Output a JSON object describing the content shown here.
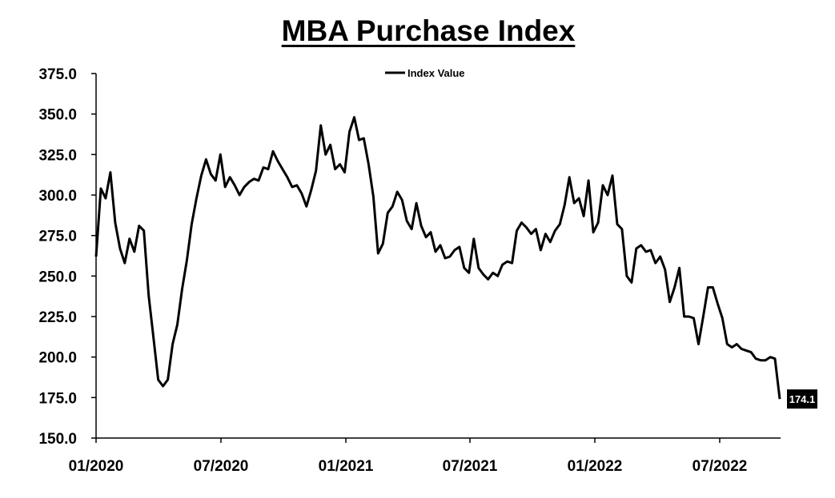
{
  "chart_data": {
    "type": "line",
    "title": "MBA Purchase Index",
    "xlabel": "",
    "ylabel": "",
    "ylim": [
      150,
      375
    ],
    "yticks": [
      "150.0",
      "175.0",
      "200.0",
      "225.0",
      "250.0",
      "275.0",
      "300.0",
      "325.0",
      "350.0",
      "375.0"
    ],
    "xticks": [
      "01/2020",
      "07/2020",
      "01/2021",
      "07/2021",
      "01/2022",
      "07/2022"
    ],
    "x_start": "01/2020",
    "x_end": "11/2022",
    "grid": false,
    "legend": "top-center",
    "series": [
      {
        "name": "Index Value",
        "color": "#000000",
        "values": [
          262.0,
          304.0,
          298.0,
          314.0,
          283.0,
          267.0,
          258.0,
          273.0,
          265.0,
          281.0,
          278.0,
          238.0,
          212.0,
          186.0,
          182.0,
          186.0,
          208.0,
          220.0,
          242.0,
          260.0,
          282.0,
          298.0,
          312.0,
          322.0,
          313.0,
          309.0,
          325.0,
          305.0,
          311.0,
          306.0,
          300.0,
          305.0,
          308.0,
          310.0,
          309.0,
          317.0,
          316.0,
          327.0,
          321.0,
          316.0,
          311.0,
          305.0,
          306.0,
          301.0,
          293.0,
          303.0,
          315.0,
          343.0,
          325.0,
          331.0,
          316.0,
          319.0,
          314.0,
          339.0,
          348.0,
          334.0,
          335.0,
          319.0,
          299.0,
          264.0,
          270.0,
          289.0,
          293.0,
          302.0,
          297.0,
          284.0,
          279.0,
          295.0,
          281.0,
          274.0,
          277.0,
          265.0,
          269.0,
          261.0,
          262.0,
          266.0,
          268.0,
          255.0,
          252.0,
          273.0,
          255.0,
          251.0,
          248.0,
          252.0,
          250.0,
          257.0,
          259.0,
          258.0,
          278.0,
          283.0,
          280.0,
          276.0,
          279.0,
          266.0,
          276.0,
          271.0,
          278.0,
          282.0,
          294.0,
          311.0,
          295.0,
          298.0,
          287.0,
          309.0,
          277.0,
          283.0,
          306.0,
          300.0,
          312.0,
          282.0,
          279.0,
          250.0,
          246.0,
          267.0,
          269.0,
          265.0,
          266.0,
          258.0,
          262.0,
          254.0,
          234.0,
          243.0,
          255.0,
          225.0,
          225.0,
          224.0,
          208.0,
          225.0,
          243.0,
          243.0,
          233.0,
          224.0,
          208.0,
          206.0,
          208.0,
          205.0,
          204.0,
          203.0,
          199.0,
          198.0,
          198.0,
          200.0,
          199.0,
          174.1
        ]
      }
    ],
    "end_label": "174.1"
  }
}
